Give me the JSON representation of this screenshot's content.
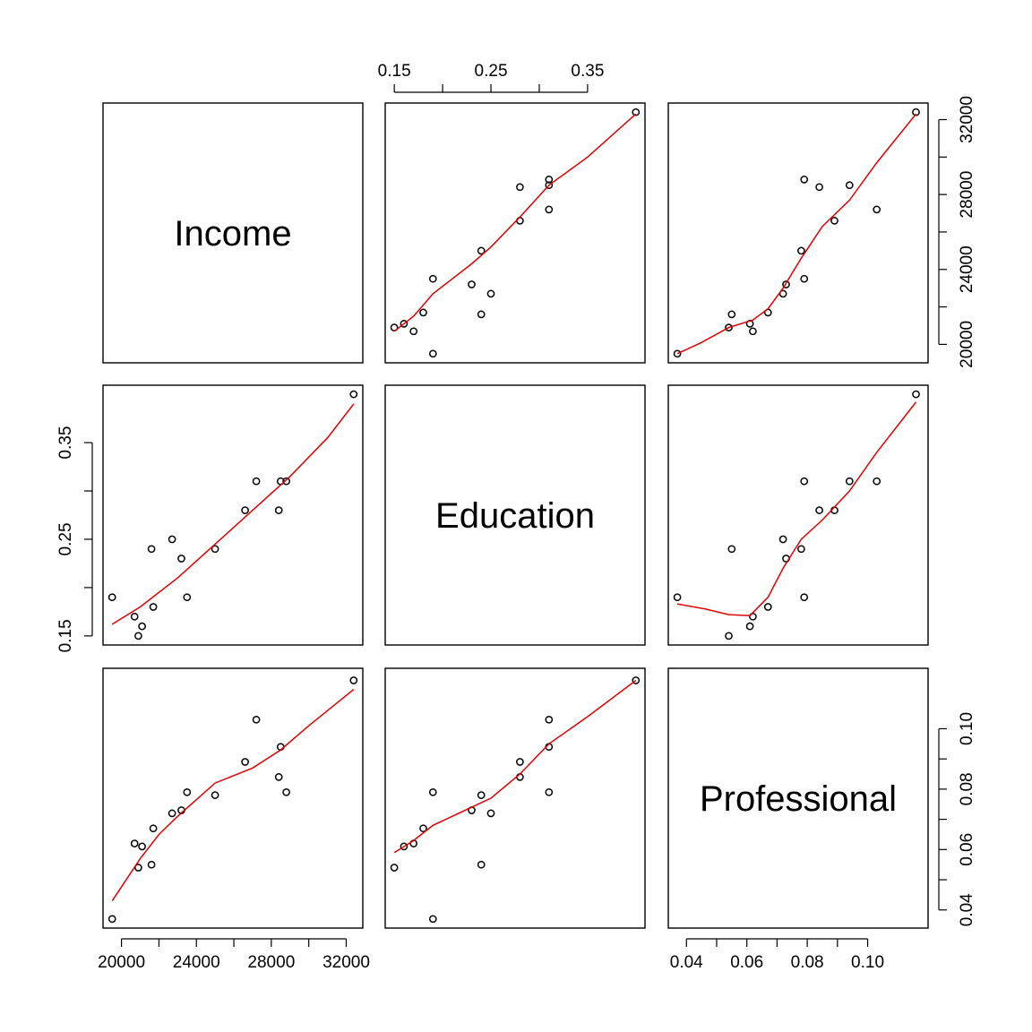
{
  "chart_data": {
    "type": "scatter",
    "title": "",
    "grid": false,
    "variables": [
      "Income",
      "Education",
      "Professional"
    ],
    "ranges": {
      "Income": [
        19500,
        32400
      ],
      "Education": [
        0.15,
        0.4
      ],
      "Professional": [
        0.037,
        0.117
      ]
    },
    "ticks": {
      "Income": [
        20000,
        24000,
        28000,
        32000
      ],
      "Education": [
        0.15,
        0.25,
        0.35
      ],
      "Professional": [
        0.04,
        0.06,
        0.08,
        0.1
      ]
    },
    "tick_labels": {
      "Income": [
        "20000",
        "24000",
        "28000",
        "32000"
      ],
      "Education": [
        "0.15",
        "0.25",
        "0.35"
      ],
      "Professional": [
        "0.04",
        "0.06",
        "0.08",
        "0.10"
      ]
    },
    "observations": [
      {
        "Income": 20700,
        "Education": 0.17,
        "Professional": 0.062
      },
      {
        "Income": 21100,
        "Education": 0.16,
        "Professional": 0.061
      },
      {
        "Income": 21600,
        "Education": 0.24,
        "Professional": 0.055
      },
      {
        "Income": 19500,
        "Education": 0.19,
        "Professional": 0.037
      },
      {
        "Income": 26600,
        "Education": 0.28,
        "Professional": 0.089
      },
      {
        "Income": 28400,
        "Education": 0.28,
        "Professional": 0.084
      },
      {
        "Income": 27200,
        "Education": 0.31,
        "Professional": 0.103
      },
      {
        "Income": 28500,
        "Education": 0.31,
        "Professional": 0.094
      },
      {
        "Income": 28800,
        "Education": 0.31,
        "Professional": 0.079
      },
      {
        "Income": 32400,
        "Education": 0.4,
        "Professional": 0.116
      },
      {
        "Income": 25000,
        "Education": 0.24,
        "Professional": 0.078
      },
      {
        "Income": 23500,
        "Education": 0.19,
        "Professional": 0.079
      },
      {
        "Income": 23200,
        "Education": 0.23,
        "Professional": 0.073
      },
      {
        "Income": 22700,
        "Education": 0.25,
        "Professional": 0.072
      },
      {
        "Income": 21700,
        "Education": 0.18,
        "Professional": 0.067
      },
      {
        "Income": 20900,
        "Education": 0.15,
        "Professional": 0.054
      }
    ],
    "smoother_color": "#e00000",
    "smoothers": {
      "Income|Education": [
        [
          19500,
          0.162
        ],
        [
          21000,
          0.18
        ],
        [
          23000,
          0.21
        ],
        [
          25000,
          0.245
        ],
        [
          27000,
          0.28
        ],
        [
          29000,
          0.315
        ],
        [
          31000,
          0.355
        ],
        [
          32400,
          0.39
        ]
      ],
      "Income|Professional": [
        [
          19500,
          0.043
        ],
        [
          21000,
          0.057
        ],
        [
          22000,
          0.065
        ],
        [
          23000,
          0.071
        ],
        [
          25000,
          0.082
        ],
        [
          27000,
          0.087
        ],
        [
          28500,
          0.093
        ],
        [
          30000,
          0.101
        ],
        [
          32400,
          0.113
        ]
      ],
      "Education|Income": [
        [
          0.15,
          20700
        ],
        [
          0.17,
          21500
        ],
        [
          0.19,
          22700
        ],
        [
          0.23,
          24300
        ],
        [
          0.25,
          25200
        ],
        [
          0.28,
          26800
        ],
        [
          0.31,
          28500
        ],
        [
          0.35,
          30000
        ],
        [
          0.4,
          32300
        ]
      ],
      "Education|Professional": [
        [
          0.15,
          0.059
        ],
        [
          0.17,
          0.063
        ],
        [
          0.19,
          0.068
        ],
        [
          0.23,
          0.074
        ],
        [
          0.25,
          0.077
        ],
        [
          0.28,
          0.085
        ],
        [
          0.31,
          0.095
        ],
        [
          0.35,
          0.104
        ],
        [
          0.4,
          0.116
        ]
      ],
      "Professional|Income": [
        [
          0.037,
          19500
        ],
        [
          0.045,
          20100
        ],
        [
          0.054,
          20900
        ],
        [
          0.062,
          21300
        ],
        [
          0.067,
          21900
        ],
        [
          0.072,
          23000
        ],
        [
          0.078,
          24600
        ],
        [
          0.085,
          26300
        ],
        [
          0.094,
          27700
        ],
        [
          0.103,
          29700
        ],
        [
          0.116,
          32300
        ]
      ],
      "Professional|Education": [
        [
          0.037,
          0.183
        ],
        [
          0.046,
          0.178
        ],
        [
          0.054,
          0.172
        ],
        [
          0.061,
          0.171
        ],
        [
          0.067,
          0.19
        ],
        [
          0.072,
          0.22
        ],
        [
          0.078,
          0.25
        ],
        [
          0.085,
          0.27
        ],
        [
          0.094,
          0.3
        ],
        [
          0.103,
          0.34
        ],
        [
          0.116,
          0.392
        ]
      ]
    }
  }
}
